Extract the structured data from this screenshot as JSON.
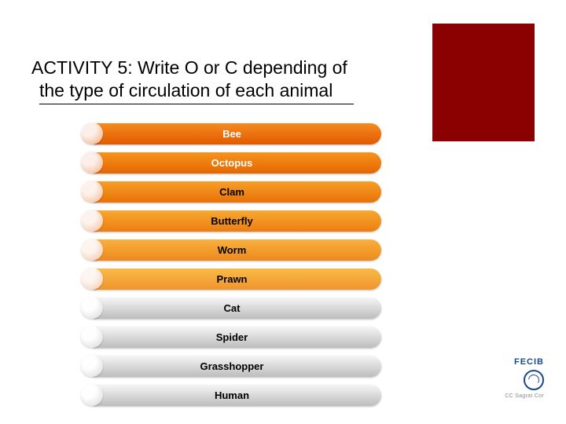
{
  "corner_color": "#8b0000",
  "title": {
    "line1": "ACTIVITY 5: Write O or C depending of",
    "line2": "the type of circulation of each animal"
  },
  "items": [
    {
      "label": "Bee",
      "text_color": "#ffffff",
      "bullet_top": "#fceee8",
      "bullet_bottom": "#f0a97a",
      "bar_top": "#f58b1f",
      "bar_bottom": "#e25a00"
    },
    {
      "label": "Octopus",
      "text_color": "#ffffff",
      "bullet_top": "#fceee8",
      "bullet_bottom": "#f1ae82",
      "bar_top": "#f6941e",
      "bar_bottom": "#e56600"
    },
    {
      "label": "Clam",
      "text_color": "#000000",
      "bullet_top": "#fdf1ea",
      "bullet_bottom": "#f2b48b",
      "bar_top": "#f79e26",
      "bar_bottom": "#e87208"
    },
    {
      "label": "Butterfly",
      "text_color": "#000000",
      "bullet_top": "#fdf2ec",
      "bullet_bottom": "#f3bb95",
      "bar_top": "#f8a830",
      "bar_bottom": "#eb7e12"
    },
    {
      "label": "Worm",
      "text_color": "#000000",
      "bullet_top": "#fdf4ee",
      "bullet_bottom": "#f4c09e",
      "bar_top": "#f8b13c",
      "bar_bottom": "#ed891e"
    },
    {
      "label": "Prawn",
      "text_color": "#000000",
      "bullet_top": "#fdf5f0",
      "bullet_bottom": "#f5c7a8",
      "bar_top": "#f9ba48",
      "bar_bottom": "#ef952c"
    },
    {
      "label": "Cat",
      "text_color": "#000000",
      "bullet_top": "#fefefe",
      "bullet_bottom": "#d6d6d6",
      "bar_top": "#f5f5f5",
      "bar_bottom": "#bdbdbd"
    },
    {
      "label": "Spider",
      "text_color": "#000000",
      "bullet_top": "#fefefe",
      "bullet_bottom": "#d6d6d6",
      "bar_top": "#f5f5f5",
      "bar_bottom": "#bdbdbd"
    },
    {
      "label": "Grasshopper",
      "text_color": "#000000",
      "bullet_top": "#fefefe",
      "bullet_bottom": "#d6d6d6",
      "bar_top": "#f5f5f5",
      "bar_bottom": "#bdbdbd"
    },
    {
      "label": "Human",
      "text_color": "#000000",
      "bullet_top": "#fefefe",
      "bullet_bottom": "#d6d6d6",
      "bar_top": "#f5f5f5",
      "bar_bottom": "#bdbdbd"
    }
  ],
  "logo": {
    "name": "FECIB",
    "sub": "CC Sagrat Cor",
    "color": "#1a4a8a"
  }
}
